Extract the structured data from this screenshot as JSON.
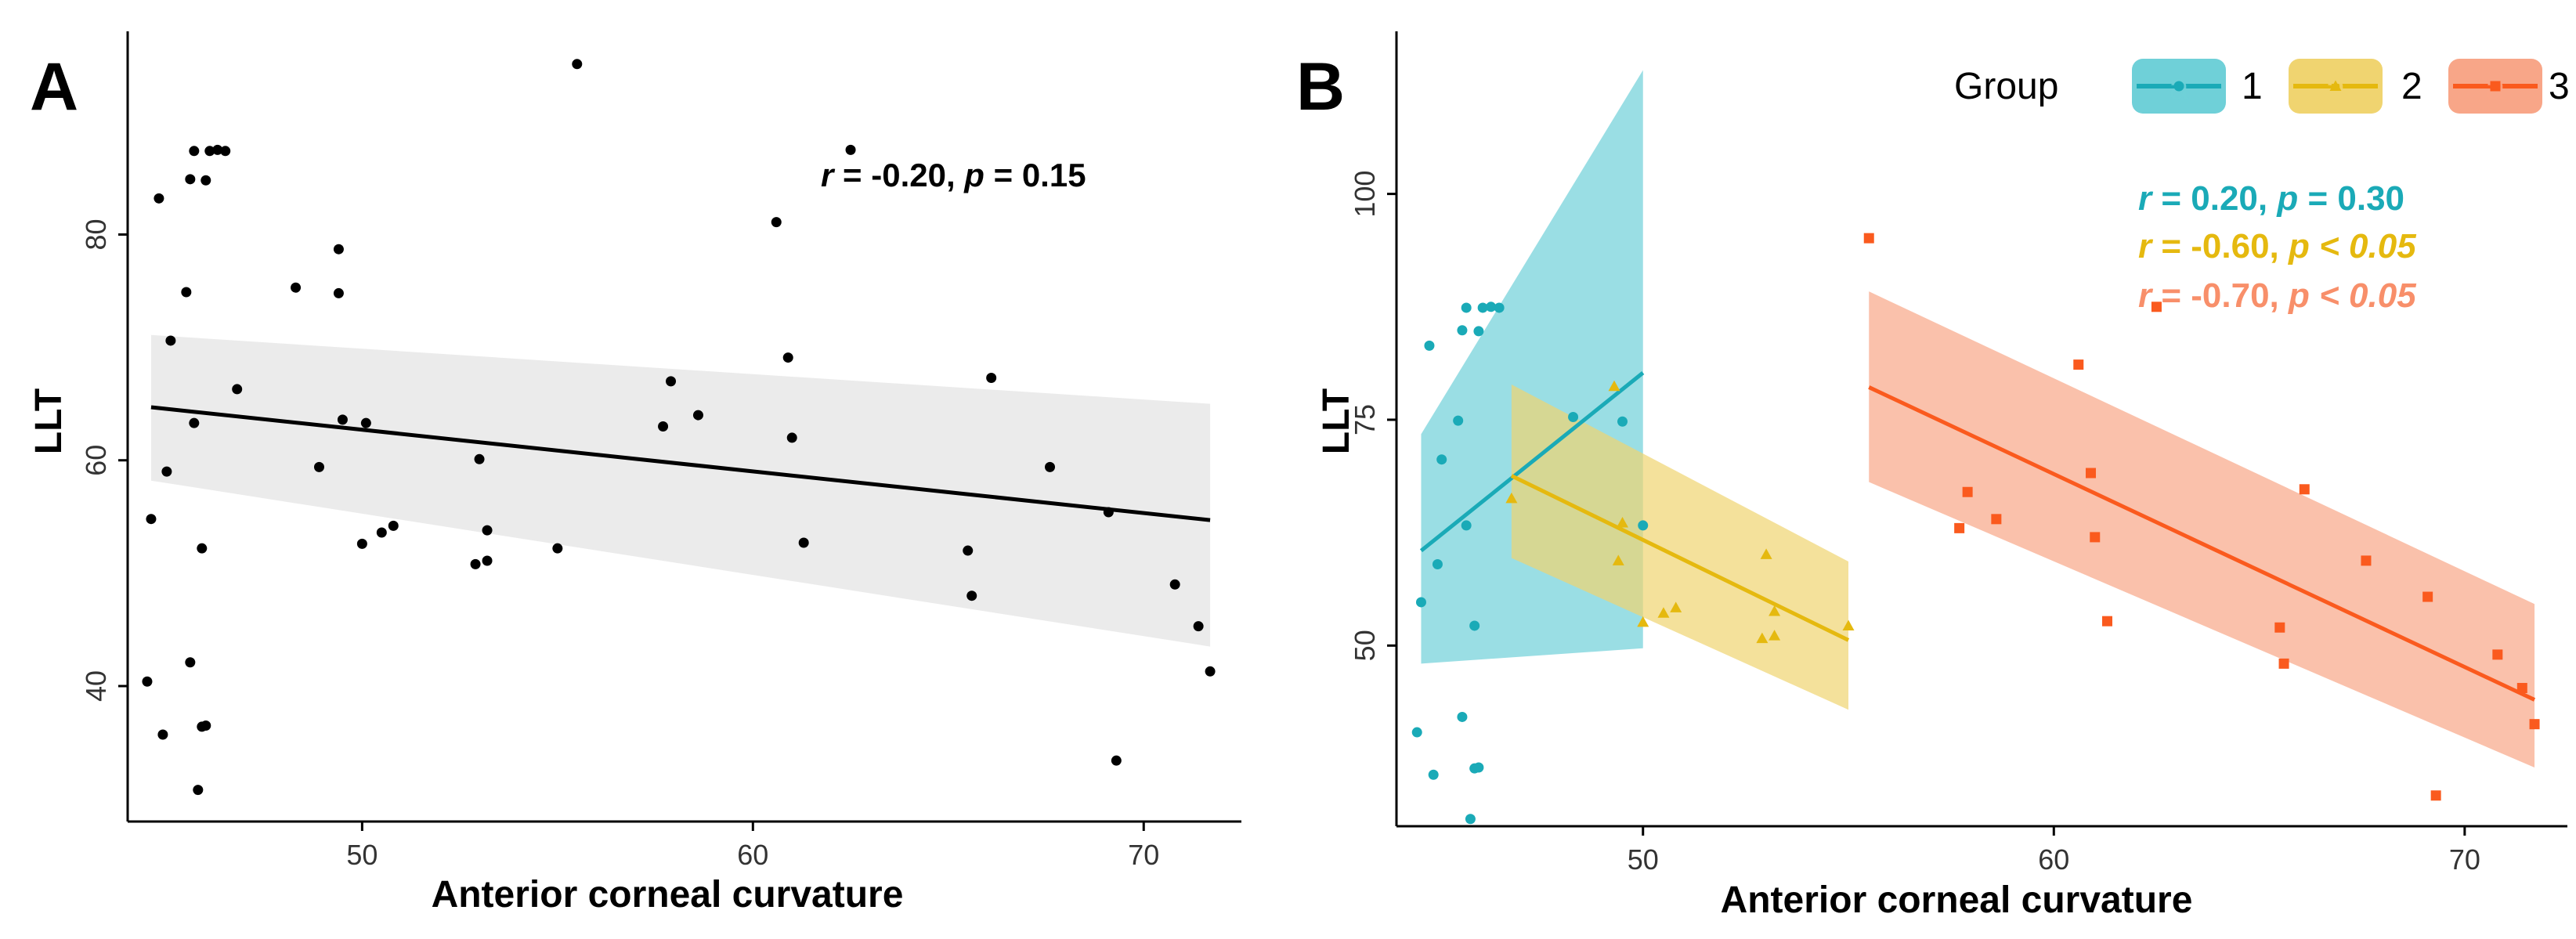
{
  "chart_data": [
    {
      "panel_label": "A",
      "type": "scatter",
      "xlabel": "Anterior corneal curvature",
      "ylabel": "LLT",
      "xlim": [
        44,
        72.5
      ],
      "ylim": [
        28,
        98
      ],
      "xticks": [
        50,
        60,
        70
      ],
      "yticks": [
        40,
        60,
        80
      ],
      "grid": false,
      "annotation": {
        "r_label": "r",
        "r_text": " = -0.20, ",
        "p_label": "p",
        "p_text": " = 0.15"
      },
      "fit": {
        "x": [
          44.6,
          71.7
        ],
        "y": [
          64.7,
          54.7
        ],
        "ci_lower": [
          58.2,
          43.5
        ],
        "ci_upper": [
          71.1,
          65.0
        ]
      },
      "points": {
        "x": [
          44.5,
          44.6,
          44.8,
          44.9,
          45.0,
          45.1,
          45.5,
          45.6,
          45.7,
          45.8,
          45.9,
          46.0,
          46.1,
          46.3,
          46.5,
          45.7,
          45.9,
          46.0,
          45.6,
          46.8,
          48.3,
          48.9,
          49.4,
          49.4,
          49.5,
          50.0,
          50.1,
          50.5,
          50.8,
          52.9,
          53.0,
          53.2,
          53.2,
          55.0,
          55.5,
          57.7,
          57.9,
          58.6,
          60.6,
          60.9,
          61.0,
          61.3,
          62.5,
          65.5,
          65.6,
          66.1,
          67.6,
          69.1,
          69.3,
          70.8,
          71.4,
          71.7
        ],
        "y": [
          40.4,
          54.8,
          83.2,
          35.7,
          59.0,
          70.6,
          74.9,
          42.1,
          63.3,
          30.8,
          52.2,
          84.8,
          87.4,
          87.5,
          87.4,
          87.4,
          36.4,
          36.5,
          84.9,
          66.3,
          75.3,
          59.4,
          78.7,
          74.8,
          63.6,
          52.6,
          63.3,
          53.6,
          54.2,
          50.8,
          60.1,
          53.8,
          51.1,
          52.2,
          95.1,
          63.0,
          67.0,
          64.0,
          81.1,
          69.1,
          62.0,
          52.7,
          87.5,
          52.0,
          48.0,
          67.3,
          59.4,
          55.4,
          33.4,
          49.0,
          45.3,
          41.3
        ]
      }
    },
    {
      "panel_label": "B",
      "type": "scatter",
      "xlabel": "Anterior corneal curvature",
      "ylabel": "LLT",
      "xlim": [
        44,
        72.5
      ],
      "ylim": [
        30,
        118
      ],
      "xticks": [
        50,
        60,
        70
      ],
      "yticks": [
        50,
        75,
        100
      ],
      "grid": false,
      "legend": {
        "title": "Group",
        "position": "top-right",
        "key_glyph": "a"
      },
      "series": [
        {
          "name": "1",
          "color": "#1AAAB7",
          "band_color": "#6FD0D8",
          "annotation": {
            "r_label": "r",
            "r_text": " = 0.20, ",
            "p_label": "p",
            "p_text": " = 0.30"
          },
          "fit": {
            "x": [
              44.6,
              50.0
            ],
            "y": [
              60.5,
              80.2
            ],
            "ci_lower": [
              48.0,
              49.7
            ],
            "ci_upper": [
              73.4,
              113.7
            ]
          },
          "x": [
            44.5,
            44.6,
            44.8,
            44.9,
            45.0,
            45.1,
            45.5,
            45.6,
            45.7,
            45.8,
            45.9,
            46.0,
            46.1,
            46.3,
            46.5,
            45.7,
            45.9,
            46.0,
            45.6,
            48.3,
            49.5,
            50.0
          ],
          "y": [
            40.4,
            54.8,
            83.2,
            35.7,
            59.0,
            70.6,
            74.9,
            42.1,
            63.3,
            30.8,
            52.2,
            84.8,
            87.4,
            87.5,
            87.4,
            87.4,
            36.4,
            36.5,
            84.9,
            75.3,
            74.8,
            63.3
          ]
        },
        {
          "name": "2",
          "color": "#E5B90F",
          "band_color": "#F0D470",
          "annotation": {
            "r_label": "r",
            "r_text": " = -0.60, ",
            "p_label": "p",
            "p_text": " < 0.05"
          },
          "fit": {
            "x": [
              46.8,
              55.0
            ],
            "y": [
              68.8,
              50.6
            ],
            "ci_lower": [
              59.7,
              42.9
            ],
            "ci_upper": [
              78.9,
              59.3
            ]
          },
          "x": [
            46.8,
            49.3,
            49.4,
            49.5,
            50.0,
            50.5,
            50.8,
            52.9,
            53.0,
            53.2,
            53.2,
            55.0
          ],
          "y": [
            66.3,
            78.7,
            59.4,
            63.6,
            52.6,
            53.6,
            54.2,
            50.8,
            60.1,
            51.1,
            53.8,
            52.2
          ]
        },
        {
          "name": "3",
          "color": "#FA5A1E",
          "band_color": "#F8A688",
          "annotation": {
            "r_label": "r",
            "r_text": " = -0.70, ",
            "p_label": "p",
            "p_text": " < 0.05"
          },
          "fit": {
            "x": [
              55.5,
              71.7
            ],
            "y": [
              78.6,
              44.0
            ],
            "ci_lower": [
              68.1,
              36.5
            ],
            "ci_upper": [
              89.2,
              54.6
            ]
          },
          "x": [
            55.5,
            57.7,
            57.9,
            58.6,
            60.6,
            60.9,
            61.0,
            61.3,
            62.5,
            65.5,
            65.6,
            66.1,
            67.6,
            69.1,
            69.3,
            70.8,
            71.4,
            71.7
          ],
          "y": [
            95.1,
            63.0,
            67.0,
            64.0,
            81.1,
            69.1,
            62.0,
            52.7,
            87.5,
            52.0,
            48.0,
            67.3,
            59.4,
            55.4,
            33.4,
            49.0,
            45.3,
            41.3
          ]
        }
      ]
    }
  ]
}
